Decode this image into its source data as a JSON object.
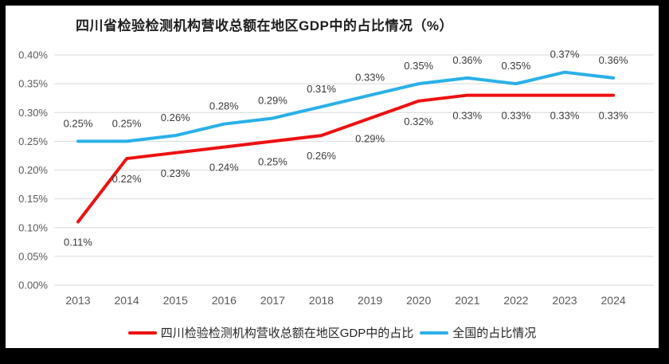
{
  "chart_data": {
    "type": "line",
    "title": "四川省检验检测机构营收总额在地区GDP中的占比情况（%）",
    "categories": [
      "2013",
      "2014",
      "2015",
      "2016",
      "2017",
      "2018",
      "2019",
      "2020",
      "2021",
      "2022",
      "2023",
      "2024"
    ],
    "series": [
      {
        "name": "四川检验检测机构营收总额在地区GDP中的占比",
        "color": "#EE1111",
        "values": [
          0.11,
          0.22,
          0.23,
          0.24,
          0.25,
          0.26,
          0.29,
          0.32,
          0.33,
          0.33,
          0.33,
          0.33
        ],
        "data_labels": [
          "0.11%",
          "0.22%",
          "0.23%",
          "0.24%",
          "0.25%",
          "0.26%",
          "0.29%",
          "0.32%",
          "0.33%",
          "0.33%",
          "0.33%",
          "0.33%"
        ],
        "label_position": "below"
      },
      {
        "name": "全国的占比情况",
        "color": "#2BB0E8",
        "values": [
          0.25,
          0.25,
          0.26,
          0.28,
          0.29,
          0.31,
          0.33,
          0.35,
          0.36,
          0.35,
          0.37,
          0.36
        ],
        "data_labels": [
          "0.25%",
          "0.25%",
          "0.26%",
          "0.28%",
          "0.29%",
          "0.31%",
          "0.33%",
          "0.35%",
          "0.36%",
          "0.35%",
          "0.37%",
          "0.36%"
        ],
        "label_position": "above"
      }
    ],
    "y_axis": {
      "min": 0.0,
      "max": 0.4,
      "step": 0.05,
      "tick_labels": [
        "0.00%",
        "0.05%",
        "0.10%",
        "0.15%",
        "0.20%",
        "0.25%",
        "0.30%",
        "0.35%",
        "0.40%"
      ],
      "grid": true
    },
    "legend_position": "bottom",
    "colors": {
      "grid": "#D9D9D9",
      "axis_text": "#595959",
      "data_label_text": "#3A3A3A",
      "title_text": "#1F1F1F"
    }
  }
}
